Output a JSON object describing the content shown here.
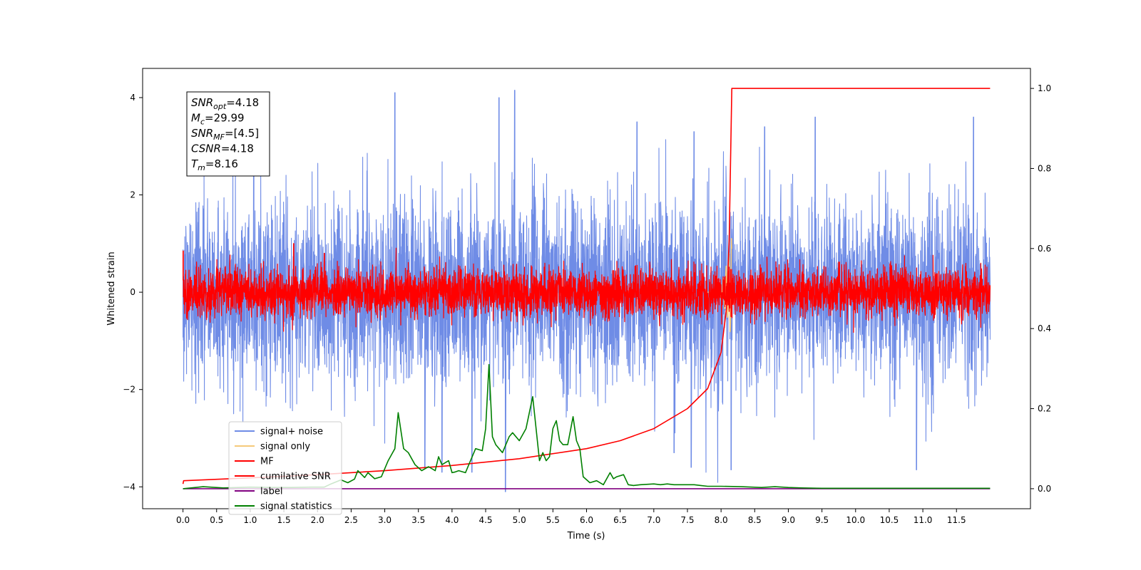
{
  "chart_data": {
    "type": "line",
    "xlabel": "Time (s)",
    "ylabel": "Whitened strain",
    "xlim": [
      -0.6,
      12.6
    ],
    "ylim_left": [
      -4.45,
      4.6
    ],
    "ylim_right": [
      -0.05,
      1.05
    ],
    "x_ticks": [
      0.0,
      0.5,
      1.0,
      1.5,
      2.0,
      2.5,
      3.0,
      3.5,
      4.0,
      4.5,
      5.0,
      5.5,
      6.0,
      6.5,
      7.0,
      7.5,
      8.0,
      8.5,
      9.0,
      9.5,
      10.0,
      10.5,
      11.0,
      11.5
    ],
    "x_tick_labels": [
      "0.0",
      "0.5",
      "1.0",
      "1.5",
      "2.0",
      "2.5",
      "3.0",
      "3.5",
      "4.0",
      "4.5",
      "5.0",
      "5.5",
      "6.0",
      "6.5",
      "7.0",
      "7.5",
      "8.0",
      "8.5",
      "9.0",
      "9.5",
      "10.0",
      "10.5",
      "11.0",
      "11.5"
    ],
    "y_ticks_left": [
      -4,
      -2,
      0,
      2,
      4
    ],
    "y_tick_labels_left": [
      "−4",
      "−2",
      "0",
      "2",
      "4"
    ],
    "y_ticks_right": [
      0.0,
      0.2,
      0.4,
      0.6,
      0.8,
      1.0
    ],
    "y_tick_labels_right": [
      "0.0",
      "0.2",
      "0.4",
      "0.6",
      "0.8",
      "1.0"
    ],
    "grid": false,
    "legend_position": "lower-left",
    "annotation_box": {
      "position": "top-left",
      "lines": [
        {
          "sym": "SNR",
          "sub": "opt",
          "val": "=4.18"
        },
        {
          "sym": "M",
          "sub": "c",
          "val": "=29.99"
        },
        {
          "sym": "SNR",
          "sub": "MF",
          "val": "=[4.5]"
        },
        {
          "sym": "CSNR",
          "sub": "",
          "val": "=4.18"
        },
        {
          "sym": "T",
          "sub": "m",
          "val": "=8.16"
        }
      ]
    },
    "series": [
      {
        "name": "signal+ noise",
        "axis": "left",
        "color": "#6f8ce6",
        "kind": "noise",
        "x_range": [
          0.0,
          12.0
        ],
        "sigma": 1.05,
        "notable_extremes": [
          [
            1.05,
            3.3
          ],
          [
            3.15,
            4.1
          ],
          [
            4.7,
            4.0
          ],
          [
            4.93,
            4.15
          ],
          [
            4.8,
            -4.1
          ],
          [
            3.85,
            -3.7
          ],
          [
            3.6,
            -3.6
          ],
          [
            4.3,
            -3.7
          ],
          [
            7.55,
            -3.6
          ],
          [
            7.3,
            -3.3
          ],
          [
            8.15,
            -3.65
          ],
          [
            10.9,
            -3.65
          ],
          [
            7.6,
            3.3
          ],
          [
            9.4,
            3.6
          ],
          [
            11.75,
            3.6
          ],
          [
            6.75,
            3.5
          ],
          [
            8.65,
            3.4
          ]
        ]
      },
      {
        "name": "signal only",
        "axis": "left",
        "color": "#f5c97a",
        "kind": "chirp",
        "x_range": [
          7.8,
          8.16
        ],
        "peak": 1.2,
        "trough": -1.0
      },
      {
        "name": "MF",
        "axis": "left",
        "color": "#ff0000",
        "kind": "noise",
        "x_range": [
          0.0,
          12.0
        ],
        "sigma": 0.27,
        "notable_extremes": [
          [
            0.0,
            0.85
          ],
          [
            1.65,
            1.0
          ],
          [
            2.1,
            0.8
          ],
          [
            8.15,
            -0.5
          ]
        ]
      },
      {
        "name": "cumilative SNR",
        "axis": "right",
        "color": "#ff0000",
        "kind": "cumulative",
        "x": [
          0.0,
          0.01,
          1.0,
          2.0,
          3.0,
          4.0,
          5.0,
          6.0,
          6.5,
          7.0,
          7.5,
          7.8,
          8.0,
          8.08,
          8.12,
          8.16,
          12.0
        ],
        "y": [
          0.012,
          0.02,
          0.027,
          0.035,
          0.045,
          0.058,
          0.075,
          0.1,
          0.12,
          0.15,
          0.2,
          0.25,
          0.34,
          0.45,
          0.62,
          1.0,
          1.0
        ]
      },
      {
        "name": "label",
        "axis": "right",
        "color": "#800080",
        "kind": "line",
        "x": [
          0.0,
          12.0
        ],
        "y": [
          0.0,
          0.0
        ]
      },
      {
        "name": "signal statistics",
        "axis": "right",
        "color": "#008000",
        "kind": "line",
        "x": [
          0.0,
          0.3,
          0.6,
          1.0,
          1.3,
          1.6,
          1.9,
          2.1,
          2.2,
          2.35,
          2.45,
          2.55,
          2.6,
          2.7,
          2.75,
          2.85,
          2.95,
          3.05,
          3.15,
          3.2,
          3.28,
          3.35,
          3.45,
          3.55,
          3.65,
          3.75,
          3.8,
          3.85,
          3.95,
          4.0,
          4.05,
          4.1,
          4.2,
          4.25,
          4.35,
          4.45,
          4.5,
          4.55,
          4.6,
          4.65,
          4.75,
          4.85,
          4.9,
          5.0,
          5.1,
          5.2,
          5.3,
          5.35,
          5.4,
          5.45,
          5.5,
          5.55,
          5.6,
          5.65,
          5.72,
          5.8,
          5.85,
          5.9,
          5.95,
          6.05,
          6.15,
          6.25,
          6.35,
          6.4,
          6.45,
          6.55,
          6.62,
          6.7,
          6.8,
          7.0,
          7.1,
          7.2,
          7.3,
          7.4,
          7.5,
          7.6,
          7.7,
          7.8,
          8.0,
          8.3,
          8.6,
          8.8,
          9.0,
          9.2,
          9.5,
          10.0,
          12.0
        ],
        "y": [
          0.0,
          0.005,
          0.002,
          0.004,
          0.003,
          0.003,
          0.004,
          0.004,
          0.012,
          0.022,
          0.015,
          0.024,
          0.045,
          0.028,
          0.04,
          0.025,
          0.03,
          0.07,
          0.1,
          0.19,
          0.1,
          0.09,
          0.06,
          0.045,
          0.055,
          0.045,
          0.08,
          0.06,
          0.07,
          0.04,
          0.042,
          0.045,
          0.04,
          0.06,
          0.1,
          0.095,
          0.15,
          0.31,
          0.13,
          0.11,
          0.09,
          0.13,
          0.14,
          0.12,
          0.15,
          0.23,
          0.07,
          0.09,
          0.07,
          0.08,
          0.15,
          0.17,
          0.12,
          0.11,
          0.11,
          0.18,
          0.12,
          0.1,
          0.03,
          0.015,
          0.02,
          0.01,
          0.04,
          0.025,
          0.03,
          0.035,
          0.01,
          0.008,
          0.01,
          0.012,
          0.01,
          0.012,
          0.01,
          0.01,
          0.01,
          0.01,
          0.008,
          0.006,
          0.006,
          0.005,
          0.003,
          0.005,
          0.003,
          0.002,
          0.001,
          0.001,
          0.001
        ]
      }
    ]
  }
}
